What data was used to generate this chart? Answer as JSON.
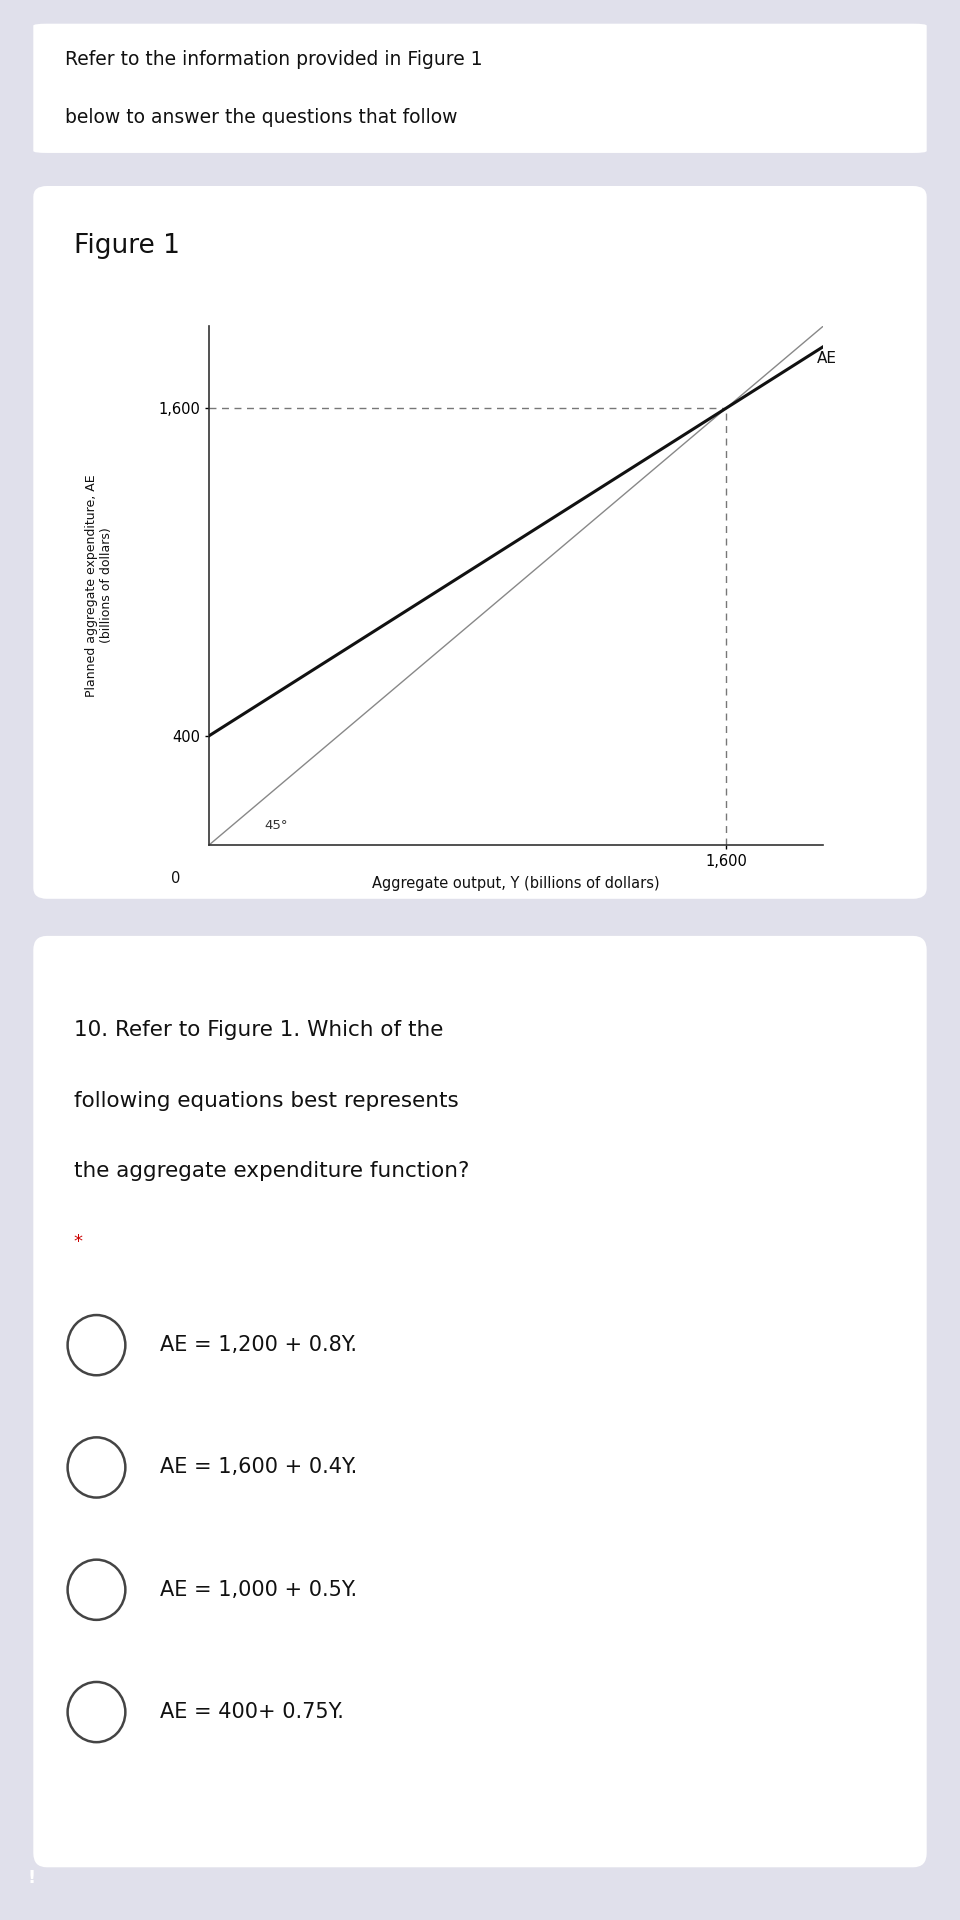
{
  "bg_color": "#e0e0eb",
  "card_color": "#ffffff",
  "title_text_line1": "Refer to the information provided in Figure 1",
  "title_text_line2": "below to answer the questions that follow",
  "figure_label": "Figure 1",
  "y_intercept": 400,
  "slope": 0.75,
  "x_equilibrium": 1600,
  "y_equilibrium": 1600,
  "x_max": 1900,
  "y_max": 1900,
  "x_tick": 1600,
  "y_ticks": [
    400,
    1600
  ],
  "xlabel": "Aggregate output, Y (billions of dollars)",
  "ylabel_line1": "Planned aggregate expenditure, AE",
  "ylabel_line2": "(billions of dollars)",
  "ae_label": "AE",
  "angle_label": "45°",
  "dashed_color": "#777777",
  "ae_line_color": "#111111",
  "line_color_45": "#888888",
  "question_text_line1": "10. Refer to Figure 1. Which of the",
  "question_text_line2": "following equations best represents",
  "question_text_line3": "the aggregate expenditure function?",
  "star_text": "*",
  "options": [
    "AE = 1,200 + 0.8Y.",
    "AE = 1,600 + 0.4Y.",
    "AE = 1,000 + 0.5Y.",
    "AE = 400+ 0.75Y."
  ]
}
